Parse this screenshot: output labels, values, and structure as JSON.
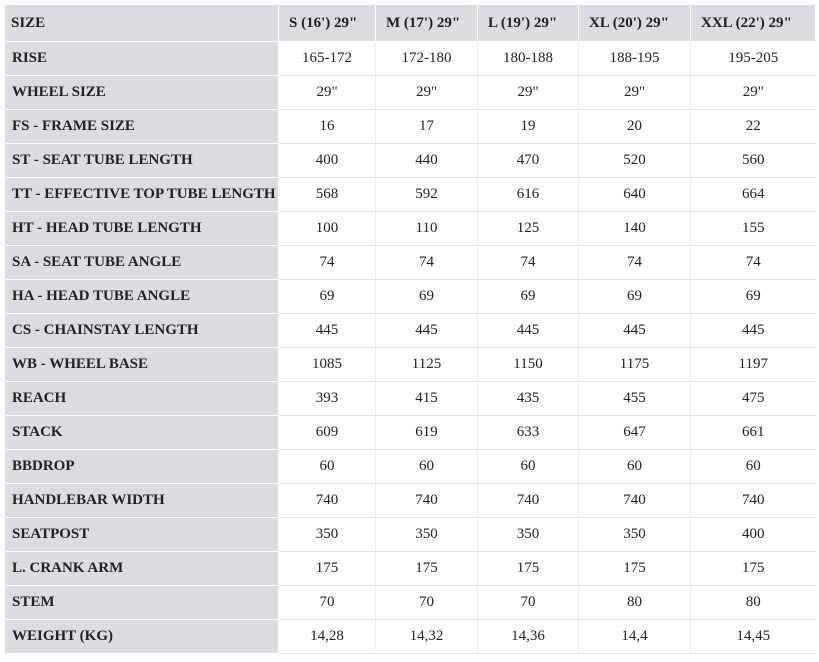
{
  "table": {
    "header": [
      "SIZE",
      "S (16') 29\"",
      "M (17') 29\"",
      "L (19') 29\"",
      "XL (20') 29\"",
      "XXL (22') 29\""
    ],
    "rows": [
      [
        "RISE",
        "165-172",
        "172-180",
        "180-188",
        "188-195",
        "195-205"
      ],
      [
        "WHEEL SIZE",
        "29\"",
        "29\"",
        "29\"",
        "29\"",
        "29\""
      ],
      [
        "FS - FRAME SIZE",
        "16",
        "17",
        "19",
        "20",
        "22"
      ],
      [
        "ST - SEAT TUBE LENGTH",
        "400",
        "440",
        "470",
        "520",
        "560"
      ],
      [
        "TT - EFFECTIVE TOP TUBE LENGTH",
        "568",
        "592",
        "616",
        "640",
        "664"
      ],
      [
        "HT - HEAD TUBE LENGTH",
        "100",
        "110",
        "125",
        "140",
        "155"
      ],
      [
        "SA - SEAT TUBE ANGLE",
        "74",
        "74",
        "74",
        "74",
        "74"
      ],
      [
        "HA - HEAD TUBE ANGLE",
        "69",
        "69",
        "69",
        "69",
        "69"
      ],
      [
        "CS - CHAINSTAY LENGTH",
        "445",
        "445",
        "445",
        "445",
        "445"
      ],
      [
        "WB - WHEEL BASE",
        "1085",
        "1125",
        "1150",
        "1175",
        "1197"
      ],
      [
        "REACH",
        "393",
        "415",
        "435",
        "455",
        "475"
      ],
      [
        "STACK",
        "609",
        "619",
        "633",
        "647",
        "661"
      ],
      [
        "BBDROP",
        "60",
        "60",
        "60",
        "60",
        "60"
      ],
      [
        "HANDLEBAR WIDTH",
        "740",
        "740",
        "740",
        "740",
        "740"
      ],
      [
        "SEATPOST",
        "350",
        "350",
        "350",
        "350",
        "400"
      ],
      [
        "L. CRANK ARM",
        "175",
        "175",
        "175",
        "175",
        "175"
      ],
      [
        "STEM",
        "70",
        "70",
        "70",
        "80",
        "80"
      ],
      [
        "WEIGHT (KG)",
        "14,28",
        "14,32",
        "14,36",
        "14,4",
        "14,45"
      ]
    ]
  }
}
